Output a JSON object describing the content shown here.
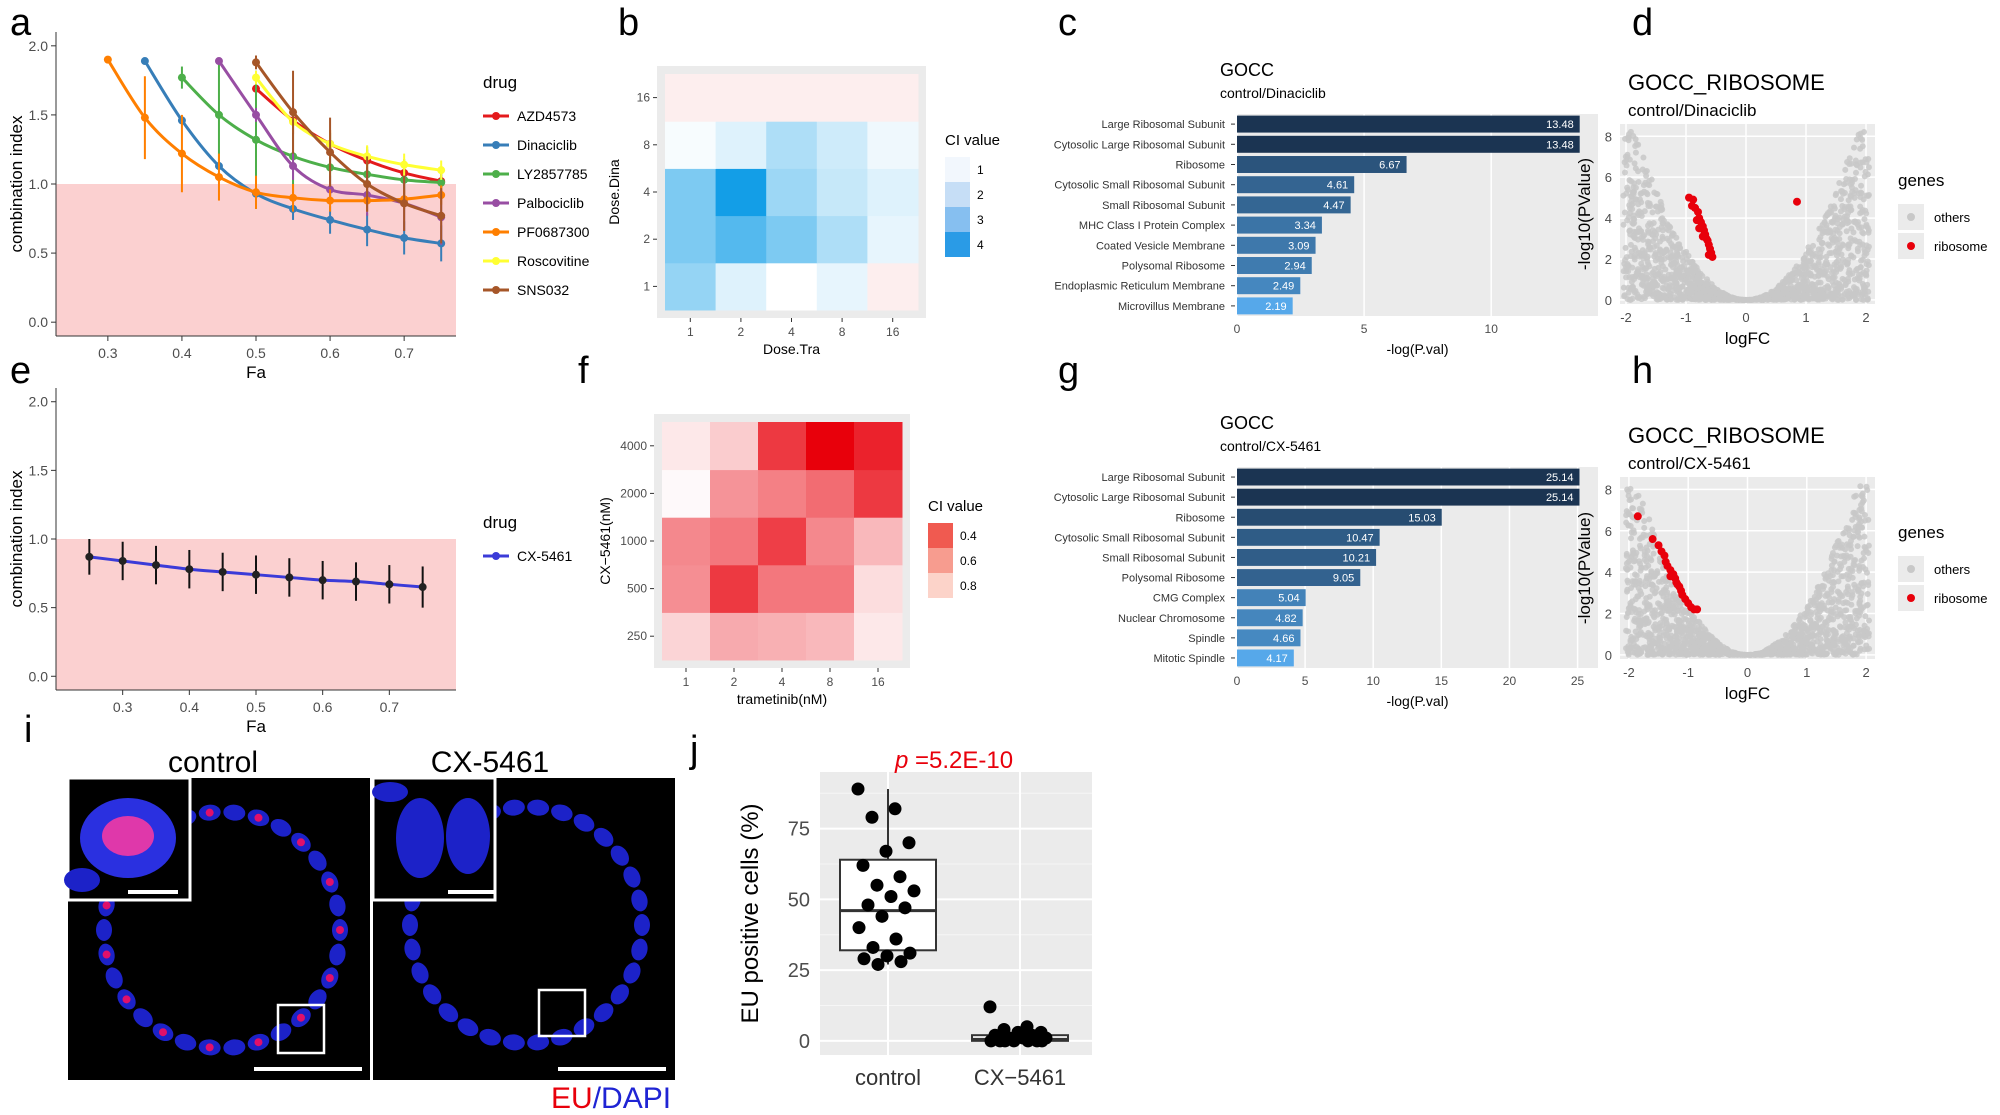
{
  "colors": {
    "panel_bg": "#ebebeb",
    "grid_major": "#ffffff",
    "axis_text": "#4d4d4d",
    "pink_region": "#fbd0d0",
    "bar_dark": "#1b3452",
    "bar_light": "#56a8ea",
    "volcano_other": "#c8c8c8",
    "volcano_ribosome": "#e8000b",
    "ci_blue_low": "#ffffff",
    "ci_blue_high": "#0b9be6",
    "ci_red_low": "#ffffff",
    "ci_red_high": "#e8000b",
    "p_value_text": "#e8000b",
    "eu_red": "#e8000b",
    "dapi_blue": "#1f24d4"
  },
  "panels": {
    "a": "a",
    "b": "b",
    "c": "c",
    "d": "d",
    "e": "e",
    "f": "f",
    "g": "g",
    "h": "h",
    "i": "i",
    "j": "j"
  },
  "chart_data": [
    {
      "panel": "a",
      "type": "line",
      "xlabel": "Fa",
      "ylabel": "combination index",
      "xlim": [
        0.23,
        0.77
      ],
      "ylim": [
        -0.1,
        2.1
      ],
      "xticks": [
        0.3,
        0.4,
        0.5,
        0.6,
        0.7
      ],
      "xtick_labels": [
        "0.3",
        "0.4",
        "0.5",
        "0.6",
        "0.7"
      ],
      "yticks": [
        0,
        0.5,
        1,
        1.5,
        2
      ],
      "ytick_labels": [
        "0.0",
        "0.5",
        "1.0",
        "1.5",
        "2.0"
      ],
      "shaded_below": 1.0,
      "legend_title": "drug",
      "legend_position": "right",
      "series": [
        {
          "name": "AZD4573",
          "color": "#e41a1c",
          "x": [
            0.5,
            0.55,
            0.6,
            0.65,
            0.7,
            0.75
          ],
          "y": [
            1.69,
            1.46,
            1.29,
            1.17,
            1.08,
            1.02
          ],
          "err": [
            0.12,
            0.1,
            0.1,
            0.08,
            0.06,
            0.05
          ]
        },
        {
          "name": "Dinaciclib",
          "color": "#377eb8",
          "x": [
            0.35,
            0.4,
            0.45,
            0.5,
            0.55,
            0.6,
            0.65,
            0.7,
            0.75
          ],
          "y": [
            1.89,
            1.46,
            1.13,
            0.93,
            0.82,
            0.74,
            0.67,
            0.61,
            0.57
          ],
          "err": [
            0.02,
            0.03,
            0.02,
            0.02,
            0.08,
            0.1,
            0.12,
            0.12,
            0.13
          ]
        },
        {
          "name": "LY2857785",
          "color": "#4daf4a",
          "x": [
            0.4,
            0.45,
            0.5,
            0.55,
            0.6,
            0.65,
            0.7,
            0.75
          ],
          "y": [
            1.77,
            1.5,
            1.32,
            1.2,
            1.12,
            1.07,
            1.03,
            1.01
          ],
          "err": [
            0.08,
            0.38,
            0.5,
            0.3,
            0.25,
            0.2,
            0.15,
            0.1
          ]
        },
        {
          "name": "Palbociclib",
          "color": "#984ea3",
          "x": [
            0.45,
            0.5,
            0.55,
            0.6,
            0.65,
            0.7,
            0.75
          ],
          "y": [
            1.89,
            1.5,
            1.13,
            0.96,
            0.92,
            0.86,
            0.76
          ],
          "err": [
            0.02,
            0.05,
            0.1,
            0.1,
            0.15,
            0.2,
            0.2
          ]
        },
        {
          "name": "PF0687300",
          "color": "#ff7f00",
          "x": [
            0.3,
            0.35,
            0.4,
            0.45,
            0.5,
            0.55,
            0.6,
            0.65,
            0.7,
            0.75
          ],
          "y": [
            1.9,
            1.48,
            1.22,
            1.05,
            0.94,
            0.9,
            0.88,
            0.88,
            0.89,
            0.92
          ],
          "err": [
            0.02,
            0.3,
            0.28,
            0.17,
            0.12,
            0.1,
            0.08,
            0.08,
            0.07,
            0.07
          ]
        },
        {
          "name": "Roscovitine",
          "color": "#ffff33",
          "x": [
            0.5,
            0.55,
            0.6,
            0.65,
            0.7,
            0.75
          ],
          "y": [
            1.77,
            1.45,
            1.29,
            1.2,
            1.14,
            1.1
          ],
          "err": [
            0.05,
            0.08,
            0.1,
            0.08,
            0.08,
            0.07
          ]
        },
        {
          "name": "SNS032",
          "color": "#a65628",
          "x": [
            0.5,
            0.55,
            0.6,
            0.65,
            0.7,
            0.75
          ],
          "y": [
            1.88,
            1.52,
            1.23,
            1.0,
            0.86,
            0.77
          ],
          "err": [
            0.05,
            0.3,
            0.25,
            0.2,
            0.2,
            0.2
          ]
        }
      ]
    },
    {
      "panel": "b",
      "type": "heatmap",
      "xlabel": "Dose.Tra",
      "ylabel": "Dose.Dina",
      "x_categories": [
        "1",
        "2",
        "4",
        "8",
        "16"
      ],
      "y_categories": [
        "1",
        "2",
        "4",
        "8",
        "16"
      ],
      "values": [
        [
          2.3,
          1.4,
          1.0,
          1.3,
          0.9
        ],
        [
          2.6,
          3.1,
          2.6,
          2.0,
          1.3
        ],
        [
          2.6,
          3.9,
          2.2,
          1.7,
          1.4
        ],
        [
          1.1,
          1.4,
          2.0,
          1.6,
          1.2
        ],
        [
          0.7,
          0.8,
          0.9,
          0.8,
          0.8
        ]
      ],
      "legend_title": "CI value",
      "legend_values": [
        "1",
        "2",
        "3",
        "4"
      ]
    },
    {
      "panel": "c",
      "type": "bar",
      "title": "GOCC",
      "subtitle": "control/Dinaciclib",
      "xlabel": "-log(P.val)",
      "xlim": [
        0,
        14.2
      ],
      "xticks": [
        0,
        5,
        10
      ],
      "xtick_labels": [
        "0",
        "5",
        "10"
      ],
      "categories": [
        "Large Ribosomal Subunit",
        "Cytosolic Large Ribosomal Subunit",
        "Ribosome",
        "Cytosolic Small Ribosomal Subunit",
        "Small Ribosomal Subunit",
        "MHC Class I Protein Complex",
        "Coated Vesicle Membrane",
        "Polysomal Ribosome",
        "Endoplasmic Reticulum Membrane",
        "Microvillus Membrane"
      ],
      "values": [
        13.48,
        13.48,
        6.67,
        4.61,
        4.47,
        3.34,
        3.09,
        2.94,
        2.49,
        2.19
      ],
      "labels": [
        "13.48",
        "13.48",
        "6.67",
        "4.61",
        "4.47",
        "3.34",
        "3.09",
        "2.94",
        "2.49",
        "2.19"
      ]
    },
    {
      "panel": "d",
      "type": "scatter",
      "title": "GOCC_RIBOSOME",
      "subtitle": "control/Dinaciclib",
      "xlabel": "logFC",
      "ylabel": "-log10(PValue)",
      "xlim": [
        -2.1,
        2.15
      ],
      "ylim": [
        -0.2,
        8.6
      ],
      "xticks": [
        -2,
        -1,
        0,
        1,
        2
      ],
      "xtick_labels": [
        "-2",
        "-1",
        "0",
        "1",
        "2"
      ],
      "yticks": [
        0,
        2,
        4,
        6,
        8
      ],
      "ytick_labels": [
        "0",
        "2",
        "4",
        "6",
        "8"
      ],
      "legend_title": "genes",
      "legend_items": [
        "others",
        "ribosome"
      ],
      "ribosome_points": [
        [
          -0.95,
          5.0
        ],
        [
          -0.88,
          4.9
        ],
        [
          -0.85,
          4.5
        ],
        [
          -0.9,
          4.6
        ],
        [
          -0.8,
          4.3
        ],
        [
          -0.78,
          4.0
        ],
        [
          -0.75,
          3.8
        ],
        [
          -0.72,
          3.6
        ],
        [
          -0.7,
          3.4
        ],
        [
          -0.68,
          3.2
        ],
        [
          -0.66,
          3.0
        ],
        [
          -0.64,
          2.9
        ],
        [
          -0.62,
          2.7
        ],
        [
          -0.6,
          2.5
        ],
        [
          -0.58,
          2.3
        ],
        [
          -0.56,
          2.1
        ],
        [
          -0.72,
          3.1
        ],
        [
          -0.78,
          3.5
        ],
        [
          -0.82,
          3.9
        ],
        [
          -0.62,
          2.2
        ],
        [
          0.85,
          4.8
        ]
      ]
    },
    {
      "panel": "e",
      "type": "line",
      "xlabel": "Fa",
      "ylabel": "combination index",
      "xlim": [
        0.2,
        0.8
      ],
      "ylim": [
        -0.1,
        2.1
      ],
      "xticks": [
        0.3,
        0.4,
        0.5,
        0.6,
        0.7
      ],
      "xtick_labels": [
        "0.3",
        "0.4",
        "0.5",
        "0.6",
        "0.7"
      ],
      "yticks": [
        0,
        0.5,
        1,
        1.5,
        2
      ],
      "ytick_labels": [
        "0.0",
        "0.5",
        "1.0",
        "1.5",
        "2.0"
      ],
      "shaded_below": 1.0,
      "legend_title": "drug",
      "legend_position": "right",
      "series": [
        {
          "name": "CX-5461",
          "color": "#3b3bd8",
          "x": [
            0.25,
            0.3,
            0.35,
            0.4,
            0.45,
            0.5,
            0.55,
            0.6,
            0.65,
            0.7,
            0.75
          ],
          "y": [
            0.87,
            0.84,
            0.81,
            0.78,
            0.76,
            0.74,
            0.72,
            0.7,
            0.69,
            0.67,
            0.65
          ],
          "err": [
            0.13,
            0.14,
            0.14,
            0.14,
            0.14,
            0.14,
            0.14,
            0.14,
            0.14,
            0.14,
            0.15
          ]
        }
      ]
    },
    {
      "panel": "f",
      "type": "heatmap",
      "xlabel": "trametinib(nM)",
      "ylabel": "CX−5461(nM)",
      "x_categories": [
        "1",
        "2",
        "4",
        "8",
        "16"
      ],
      "y_categories": [
        "250",
        "500",
        "1000",
        "2000",
        "4000"
      ],
      "values": [
        [
          0.85,
          0.7,
          0.72,
          0.75,
          0.92
        ],
        [
          0.6,
          0.3,
          0.52,
          0.52,
          0.88
        ],
        [
          0.58,
          0.52,
          0.32,
          0.58,
          0.75
        ],
        [
          0.98,
          0.62,
          0.55,
          0.48,
          0.3
        ],
        [
          0.92,
          0.82,
          0.3,
          0.1,
          0.22
        ]
      ],
      "legend_title": "CI value",
      "legend_values": [
        "0.4",
        "0.6",
        "0.8"
      ]
    },
    {
      "panel": "g",
      "type": "bar",
      "title": "GOCC",
      "subtitle": "control/CX-5461",
      "xlabel": "-log(P.val)",
      "xlim": [
        0,
        26.5
      ],
      "xticks": [
        0,
        5,
        10,
        15,
        20,
        25
      ],
      "xtick_labels": [
        "0",
        "5",
        "10",
        "15",
        "20",
        "25"
      ],
      "categories": [
        "Large Ribosomal Subunit",
        "Cytosolic Large Ribosomal Subunit",
        "Ribosome",
        "Cytosolic Small Ribosomal Subunit",
        "Small Ribosomal Subunit",
        "Polysomal Ribosome",
        "CMG Complex",
        "Nuclear Chromosome",
        "Spindle",
        "Mitotic Spindle"
      ],
      "values": [
        25.14,
        25.14,
        15.03,
        10.47,
        10.21,
        9.05,
        5.04,
        4.82,
        4.66,
        4.17
      ],
      "labels": [
        "25.14",
        "25.14",
        "15.03",
        "10.47",
        "10.21",
        "9.05",
        "5.04",
        "4.82",
        "4.66",
        "4.17"
      ]
    },
    {
      "panel": "h",
      "type": "scatter",
      "title": "GOCC_RIBOSOME",
      "subtitle": "control/CX-5461",
      "xlabel": "logFC",
      "ylabel": "-log10(PValue)",
      "xlim": [
        -2.15,
        2.15
      ],
      "ylim": [
        -0.2,
        8.6
      ],
      "xticks": [
        -2,
        -1,
        0,
        1,
        2
      ],
      "xtick_labels": [
        "-2",
        "-1",
        "0",
        "1",
        "2"
      ],
      "yticks": [
        0,
        2,
        4,
        6,
        8
      ],
      "ytick_labels": [
        "0",
        "2",
        "4",
        "6",
        "8"
      ],
      "legend_title": "genes",
      "legend_items": [
        "others",
        "ribosome"
      ],
      "ribosome_points": [
        [
          -1.85,
          6.7
        ],
        [
          -1.6,
          5.6
        ],
        [
          -1.5,
          5.3
        ],
        [
          -1.45,
          5.0
        ],
        [
          -1.4,
          4.8
        ],
        [
          -1.38,
          4.5
        ],
        [
          -1.35,
          4.3
        ],
        [
          -1.3,
          4.1
        ],
        [
          -1.25,
          3.9
        ],
        [
          -1.22,
          3.7
        ],
        [
          -1.2,
          3.5
        ],
        [
          -1.15,
          3.3
        ],
        [
          -1.12,
          3.1
        ],
        [
          -1.1,
          2.9
        ],
        [
          -1.05,
          2.7
        ],
        [
          -1.0,
          2.5
        ],
        [
          -0.95,
          2.3
        ],
        [
          -0.9,
          2.2
        ],
        [
          -1.3,
          3.8
        ],
        [
          -1.18,
          3.4
        ],
        [
          -0.85,
          2.2
        ]
      ]
    },
    {
      "panel": "j",
      "type": "box",
      "ylabel": "EU positive cells (%)",
      "categories": [
        "control",
        "CX−5461"
      ],
      "ylim": [
        -5,
        95
      ],
      "yticks": [
        0,
        25,
        50,
        75
      ],
      "ytick_labels": [
        "0",
        "25",
        "50",
        "75"
      ],
      "annotation": "=5.2E-10",
      "annotation_italic": "p",
      "boxes": [
        {
          "q1": 32,
          "median": 46,
          "q3": 64,
          "whisker_low": 27,
          "whisker_high": 89
        },
        {
          "q1": 0,
          "median": 0.5,
          "q3": 2,
          "whisker_low": 0,
          "whisker_high": 4
        }
      ],
      "points": [
        [
          89,
          82,
          79,
          70,
          67,
          62,
          58,
          55,
          53,
          51,
          48,
          47,
          44,
          40,
          36,
          33,
          31,
          30,
          29,
          28,
          27
        ],
        [
          12,
          5,
          4,
          3,
          3,
          2,
          2,
          1,
          1,
          1,
          0,
          0,
          0,
          0,
          0,
          0,
          0
        ]
      ]
    }
  ],
  "microscopy": {
    "label_control": "control",
    "label_cx": "CX-5461",
    "legend_eu": "EU",
    "legend_slash": "/",
    "legend_dapi": "DAPI"
  }
}
